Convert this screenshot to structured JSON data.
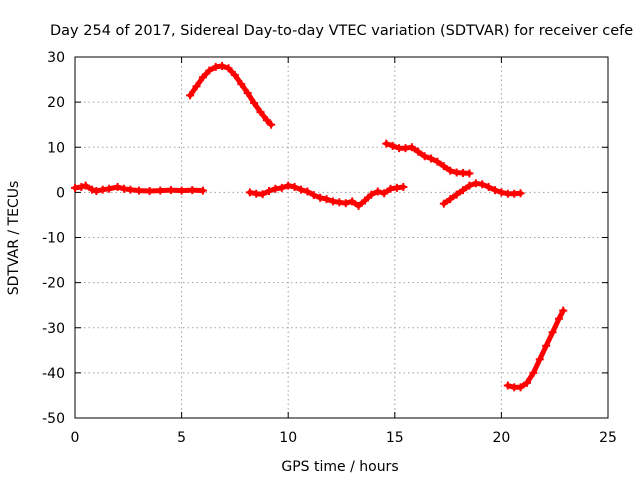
{
  "chart_data": {
    "type": "scatter",
    "title": "Day 254 of 2017, Sidereal Day-to-day VTEC variation (SDTVAR) for receiver cefe",
    "xlabel": "GPS time / hours",
    "ylabel": "SDTVAR / TECUs",
    "xlim": [
      0,
      25
    ],
    "ylim": [
      -50,
      30
    ],
    "xticks": [
      0,
      5,
      10,
      15,
      20,
      25
    ],
    "yticks": [
      -50,
      -40,
      -30,
      -20,
      -10,
      0,
      10,
      20,
      30
    ],
    "xtick_labels": [
      "0",
      "5",
      "10",
      "15",
      "20",
      "25"
    ],
    "ytick_labels": [
      "-50",
      "-40",
      "-30",
      "-20",
      "-10",
      "0",
      "10",
      "20",
      "30"
    ],
    "grid": true,
    "marker_color": "#ff0000",
    "series": [
      {
        "name": "seg1",
        "x": [
          0.0,
          0.3,
          0.5,
          0.8,
          1.0,
          1.3,
          1.6,
          2.0,
          2.3,
          2.6,
          3.0,
          3.5,
          4.0,
          4.5,
          5.0,
          5.5,
          6.0
        ],
        "y": [
          1.0,
          1.2,
          1.5,
          0.6,
          0.3,
          0.6,
          0.8,
          1.2,
          0.8,
          0.6,
          0.4,
          0.3,
          0.4,
          0.5,
          0.4,
          0.5,
          0.4
        ]
      },
      {
        "name": "seg2",
        "x": [
          5.4,
          5.7,
          6.0,
          6.3,
          6.6,
          6.9,
          7.2,
          7.5,
          7.8,
          8.1,
          8.4,
          8.7,
          9.0,
          9.2
        ],
        "y": [
          21.5,
          23.5,
          25.5,
          27.0,
          27.8,
          28.0,
          27.5,
          26.0,
          24.0,
          22.0,
          19.8,
          17.8,
          16.0,
          15.0
        ]
      },
      {
        "name": "seg3",
        "x": [
          8.2,
          8.5,
          8.8,
          9.1,
          9.4,
          9.7,
          10.0,
          10.3,
          10.6,
          10.9,
          11.2,
          11.5,
          11.8,
          12.1,
          12.4,
          12.7,
          13.0,
          13.3,
          13.6,
          13.9,
          14.2,
          14.5,
          14.8,
          15.1,
          15.4
        ],
        "y": [
          0.0,
          -0.3,
          -0.4,
          0.3,
          0.8,
          1.0,
          1.5,
          1.2,
          0.6,
          0.2,
          -0.6,
          -1.2,
          -1.5,
          -2.0,
          -2.2,
          -2.4,
          -2.0,
          -3.0,
          -1.8,
          -0.5,
          0.2,
          -0.2,
          0.8,
          1.0,
          1.2
        ]
      },
      {
        "name": "seg4",
        "x": [
          14.6,
          14.9,
          15.2,
          15.5,
          15.8,
          16.1,
          16.4,
          16.7,
          17.0,
          17.3,
          17.6,
          17.9,
          18.2,
          18.5
        ],
        "y": [
          10.8,
          10.3,
          9.8,
          9.8,
          10.0,
          9.0,
          8.0,
          7.5,
          6.8,
          5.8,
          4.8,
          4.4,
          4.3,
          4.2
        ]
      },
      {
        "name": "seg5",
        "x": [
          17.3,
          17.6,
          17.9,
          18.2,
          18.5,
          18.8,
          19.1,
          19.4,
          19.7,
          20.0,
          20.3,
          20.6,
          20.9
        ],
        "y": [
          -2.5,
          -1.5,
          -0.5,
          0.5,
          1.5,
          2.0,
          1.8,
          1.2,
          0.5,
          0.0,
          -0.3,
          -0.3,
          -0.2
        ]
      },
      {
        "name": "seg6",
        "x": [
          20.3,
          20.6,
          20.9,
          21.2,
          21.5,
          21.8,
          22.1,
          22.4,
          22.7,
          22.9
        ],
        "y": [
          -42.8,
          -43.2,
          -43.2,
          -42.2,
          -40.0,
          -37.0,
          -34.0,
          -31.0,
          -28.0,
          -26.2
        ]
      }
    ]
  }
}
